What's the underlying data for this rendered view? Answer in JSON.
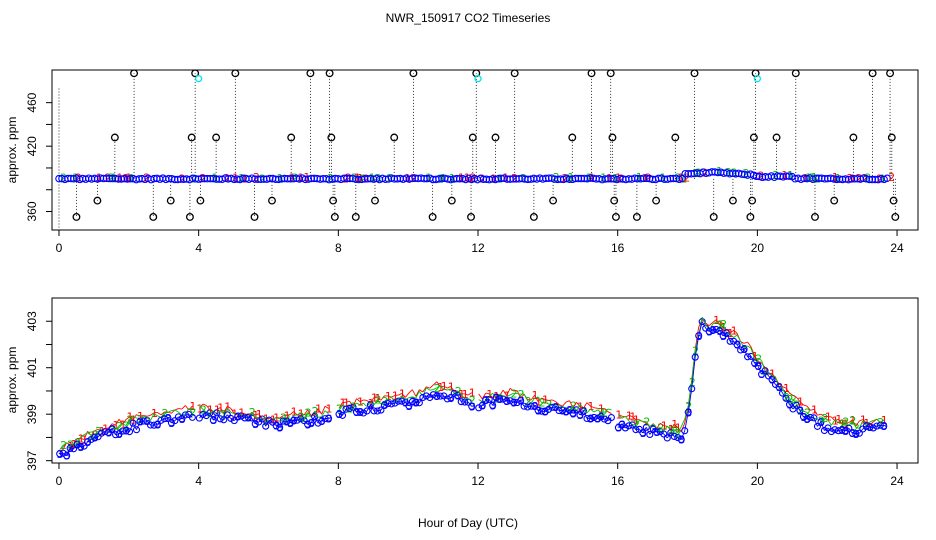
{
  "figure": {
    "title": "NWR_150917  CO2 Timeseries",
    "xlabel": "Hour of Day (UTC)"
  },
  "colors": {
    "s1": "#ff0000",
    "s2": "#00c000",
    "s3": "#0000ff",
    "circle": "#000000",
    "cyan": "#00e5ee"
  },
  "chart_data": [
    {
      "type": "scatter",
      "title": "",
      "ylabel": "approx. ppm",
      "xlim": [
        -0.2,
        24.6
      ],
      "ylim": [
        343,
        490
      ],
      "xticks": [
        0,
        4,
        8,
        12,
        16,
        20,
        24
      ],
      "yticks": [
        360,
        380,
        400,
        420,
        440,
        460
      ],
      "ytick_labels": [
        "360",
        "",
        "",
        "420",
        "",
        "460"
      ],
      "baseline_ppm": 390,
      "calibration_values_ppm": [
        355,
        370,
        428,
        487
      ],
      "calibration_events": [
        {
          "x": 0.5,
          "v": 355
        },
        {
          "x": 1.1,
          "v": 370
        },
        {
          "x": 1.6,
          "v": 428
        },
        {
          "x": 2.15,
          "v": 487
        },
        {
          "x": 2.7,
          "v": 355
        },
        {
          "x": 3.2,
          "v": 370
        },
        {
          "x": 3.75,
          "v": 355
        },
        {
          "x": 3.8,
          "v": 428
        },
        {
          "x": 3.9,
          "v": 487
        },
        {
          "x": 4.05,
          "v": 370
        },
        {
          "x": 4.5,
          "v": 428
        },
        {
          "x": 5.05,
          "v": 487
        },
        {
          "x": 5.6,
          "v": 355
        },
        {
          "x": 6.1,
          "v": 370
        },
        {
          "x": 6.65,
          "v": 428
        },
        {
          "x": 7.2,
          "v": 487
        },
        {
          "x": 7.75,
          "v": 487
        },
        {
          "x": 7.8,
          "v": 428
        },
        {
          "x": 7.85,
          "v": 370
        },
        {
          "x": 7.9,
          "v": 355
        },
        {
          "x": 8.5,
          "v": 355
        },
        {
          "x": 9.05,
          "v": 370
        },
        {
          "x": 9.6,
          "v": 428
        },
        {
          "x": 10.15,
          "v": 487
        },
        {
          "x": 10.7,
          "v": 355
        },
        {
          "x": 11.25,
          "v": 370
        },
        {
          "x": 11.8,
          "v": 355
        },
        {
          "x": 11.85,
          "v": 428
        },
        {
          "x": 11.95,
          "v": 487
        },
        {
          "x": 12.5,
          "v": 428
        },
        {
          "x": 13.05,
          "v": 487
        },
        {
          "x": 13.6,
          "v": 355
        },
        {
          "x": 14.15,
          "v": 370
        },
        {
          "x": 14.7,
          "v": 428
        },
        {
          "x": 15.25,
          "v": 487
        },
        {
          "x": 15.8,
          "v": 487
        },
        {
          "x": 15.85,
          "v": 428
        },
        {
          "x": 15.9,
          "v": 370
        },
        {
          "x": 15.95,
          "v": 355
        },
        {
          "x": 16.55,
          "v": 355
        },
        {
          "x": 17.1,
          "v": 370
        },
        {
          "x": 17.65,
          "v": 428
        },
        {
          "x": 18.2,
          "v": 487
        },
        {
          "x": 18.75,
          "v": 355
        },
        {
          "x": 19.3,
          "v": 370
        },
        {
          "x": 19.8,
          "v": 355
        },
        {
          "x": 19.85,
          "v": 370
        },
        {
          "x": 19.9,
          "v": 428
        },
        {
          "x": 19.95,
          "v": 487
        },
        {
          "x": 20.55,
          "v": 428
        },
        {
          "x": 21.1,
          "v": 487
        },
        {
          "x": 21.65,
          "v": 355
        },
        {
          "x": 22.2,
          "v": 370
        },
        {
          "x": 22.75,
          "v": 428
        },
        {
          "x": 23.3,
          "v": 487
        },
        {
          "x": 23.8,
          "v": 487
        },
        {
          "x": 23.85,
          "v": 428
        },
        {
          "x": 23.9,
          "v": 370
        },
        {
          "x": 23.95,
          "v": 355
        }
      ],
      "cyan_markers": [
        {
          "x": 4.0,
          "v": 482
        },
        {
          "x": 12.0,
          "v": 482
        },
        {
          "x": 20.0,
          "v": 482
        }
      ],
      "series_markers": [
        "1",
        "2",
        "3"
      ]
    },
    {
      "type": "scatter",
      "title": "",
      "ylabel": "approx. ppm",
      "xlim": [
        -0.2,
        24.6
      ],
      "ylim": [
        396.9,
        404.0
      ],
      "xticks": [
        0,
        4,
        8,
        12,
        16,
        20,
        24
      ],
      "yticks": [
        397,
        398,
        399,
        400,
        401,
        402,
        403
      ],
      "ytick_labels": [
        "397",
        "",
        "399",
        "",
        "401",
        "",
        "403"
      ],
      "series": [
        {
          "name": "1",
          "offset": 0.15
        },
        {
          "name": "2",
          "offset": 0.05
        },
        {
          "name": "3",
          "offset": -0.2
        }
      ],
      "gaps_hours": [
        [
          3.85,
          4.0
        ],
        [
          7.8,
          8.0
        ],
        [
          11.85,
          12.0
        ],
        [
          15.85,
          16.0
        ]
      ],
      "trend": [
        [
          0.0,
          397.4
        ],
        [
          0.5,
          397.8
        ],
        [
          1.0,
          398.1
        ],
        [
          1.5,
          398.4
        ],
        [
          2.0,
          398.6
        ],
        [
          2.5,
          398.8
        ],
        [
          3.0,
          398.95
        ],
        [
          3.5,
          399.05
        ],
        [
          3.8,
          399.1
        ],
        [
          4.0,
          399.2
        ],
        [
          4.5,
          399.1
        ],
        [
          5.0,
          399.0
        ],
        [
          5.5,
          398.9
        ],
        [
          6.0,
          398.8
        ],
        [
          6.5,
          398.75
        ],
        [
          7.0,
          398.9
        ],
        [
          7.5,
          399.0
        ],
        [
          7.8,
          399.1
        ],
        [
          8.0,
          399.2
        ],
        [
          8.5,
          399.35
        ],
        [
          9.0,
          399.45
        ],
        [
          9.5,
          399.55
        ],
        [
          10.0,
          399.7
        ],
        [
          10.5,
          399.9
        ],
        [
          10.8,
          400.15
        ],
        [
          11.2,
          400.0
        ],
        [
          11.8,
          399.7
        ],
        [
          12.0,
          399.6
        ],
        [
          12.5,
          399.75
        ],
        [
          13.0,
          399.8
        ],
        [
          13.5,
          399.6
        ],
        [
          14.0,
          399.45
        ],
        [
          14.5,
          399.3
        ],
        [
          15.0,
          399.2
        ],
        [
          15.5,
          399.1
        ],
        [
          15.8,
          399.0
        ],
        [
          16.0,
          398.8
        ],
        [
          16.5,
          398.6
        ],
        [
          17.0,
          398.45
        ],
        [
          17.5,
          398.3
        ],
        [
          17.8,
          398.2
        ],
        [
          18.0,
          398.9
        ],
        [
          18.2,
          401.5
        ],
        [
          18.4,
          403.1
        ],
        [
          18.6,
          402.6
        ],
        [
          18.8,
          402.9
        ],
        [
          19.0,
          402.7
        ],
        [
          19.3,
          402.4
        ],
        [
          19.6,
          402.0
        ],
        [
          20.0,
          401.3
        ],
        [
          20.4,
          400.6
        ],
        [
          20.8,
          399.9
        ],
        [
          21.2,
          399.3
        ],
        [
          21.6,
          398.9
        ],
        [
          22.0,
          398.6
        ],
        [
          22.5,
          398.5
        ],
        [
          23.0,
          398.5
        ],
        [
          23.7,
          398.6
        ]
      ]
    }
  ]
}
